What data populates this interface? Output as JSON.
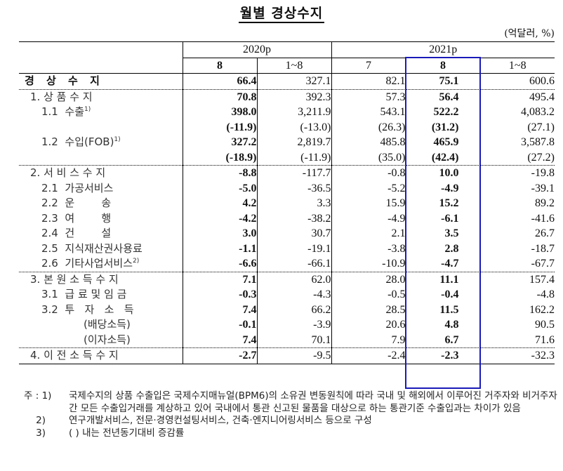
{
  "title": "월별 경상수지",
  "unit": "(억달러, %)",
  "header": {
    "groups": [
      "2020p",
      "2021p"
    ],
    "columns": [
      "8",
      "1~8",
      "7",
      "8",
      "1~8"
    ]
  },
  "highlight": {
    "column": "2021p 8",
    "color": "#1a1ab8"
  },
  "rows": [
    {
      "label": "경 상 수 지",
      "values": [
        "66.4",
        "327.1",
        "82.1",
        "75.1",
        "600.6"
      ]
    },
    {
      "label": "1. 상 품 수 지",
      "values": [
        "70.8",
        "392.3",
        "57.3",
        "56.4",
        "495.4"
      ]
    },
    {
      "label": "1.1  수출",
      "sup": "1)",
      "values": [
        "398.0",
        "3,211.9",
        "543.1",
        "522.2",
        "4,083.2"
      ]
    },
    {
      "label": "",
      "values": [
        "(-11.9)",
        "(-13.0)",
        "(26.3)",
        "(31.2)",
        "(27.1)"
      ]
    },
    {
      "label": "1.2  수입(FOB)",
      "sup": "1)",
      "values": [
        "327.2",
        "2,819.7",
        "485.8",
        "465.9",
        "3,587.8"
      ]
    },
    {
      "label": "",
      "values": [
        "(-18.9)",
        "(-11.9)",
        "(35.0)",
        "(42.4)",
        "(27.2)"
      ]
    },
    {
      "label": "2. 서 비 스 수 지",
      "values": [
        "-8.8",
        "-117.7",
        "-0.8",
        "10.0",
        "-19.8"
      ]
    },
    {
      "label": "2.1  가공서비스",
      "values": [
        "-5.0",
        "-36.5",
        "-5.2",
        "-4.9",
        "-39.1"
      ]
    },
    {
      "label": "2.2  운        송",
      "values": [
        "4.2",
        "3.3",
        "15.9",
        "15.2",
        "89.2"
      ]
    },
    {
      "label": "2.3  여        행",
      "values": [
        "-4.2",
        "-38.2",
        "-4.9",
        "-6.1",
        "-41.6"
      ]
    },
    {
      "label": "2.4  건        설",
      "values": [
        "3.0",
        "30.7",
        "2.1",
        "3.5",
        "26.7"
      ]
    },
    {
      "label": "2.5  지식재산권사용료",
      "values": [
        "-1.1",
        "-19.1",
        "-3.8",
        "2.8",
        "-18.7"
      ]
    },
    {
      "label": "2.6  기타사업서비스",
      "sup": "2)",
      "values": [
        "-6.6",
        "-66.1",
        "-10.9",
        "-4.7",
        "-67.7"
      ]
    },
    {
      "label": "3. 본 원 소 득 수 지",
      "values": [
        "7.1",
        "62.0",
        "28.0",
        "11.1",
        "157.4"
      ]
    },
    {
      "label": "3.1  급 료 및 임 금",
      "values": [
        "-0.3",
        "-4.3",
        "-0.5",
        "-0.4",
        "-4.8"
      ]
    },
    {
      "label": "3.2  투   자   소   득",
      "values": [
        "7.4",
        "66.2",
        "28.5",
        "11.5",
        "162.2"
      ]
    },
    {
      "label": "(배당소득)",
      "values": [
        "-0.1",
        "-3.9",
        "20.6",
        "4.8",
        "90.5"
      ]
    },
    {
      "label": "(이자소득)",
      "values": [
        "7.4",
        "70.1",
        "7.9",
        "6.7",
        "71.6"
      ]
    },
    {
      "label": "4. 이 전 소 득 수 지",
      "values": [
        "-2.7",
        "-9.5",
        "-2.4",
        "-2.3",
        "-32.3"
      ]
    }
  ],
  "notes": {
    "prefix": "주 :",
    "items": [
      {
        "num": "1)",
        "text": "국제수지의 상품 수출입은 국제수지매뉴얼(BPM6)의 소유권 변동원칙에 따라 국내 및 해외에서 이루어진 거주자와 비거주자 간 모든 수출입거래를 계상하고 있어 국내에서 통관 신고된 물품을 대상으로 하는 통관기준 수출입과는 차이가 있음"
      },
      {
        "num": "2)",
        "text": "연구개발서비스, 전문·경영컨설팅서비스, 건축·엔지니어링서비스 등으로 구성"
      },
      {
        "num": "3)",
        "text": "(   ) 내는 전년동기대비 증감률"
      }
    ]
  }
}
